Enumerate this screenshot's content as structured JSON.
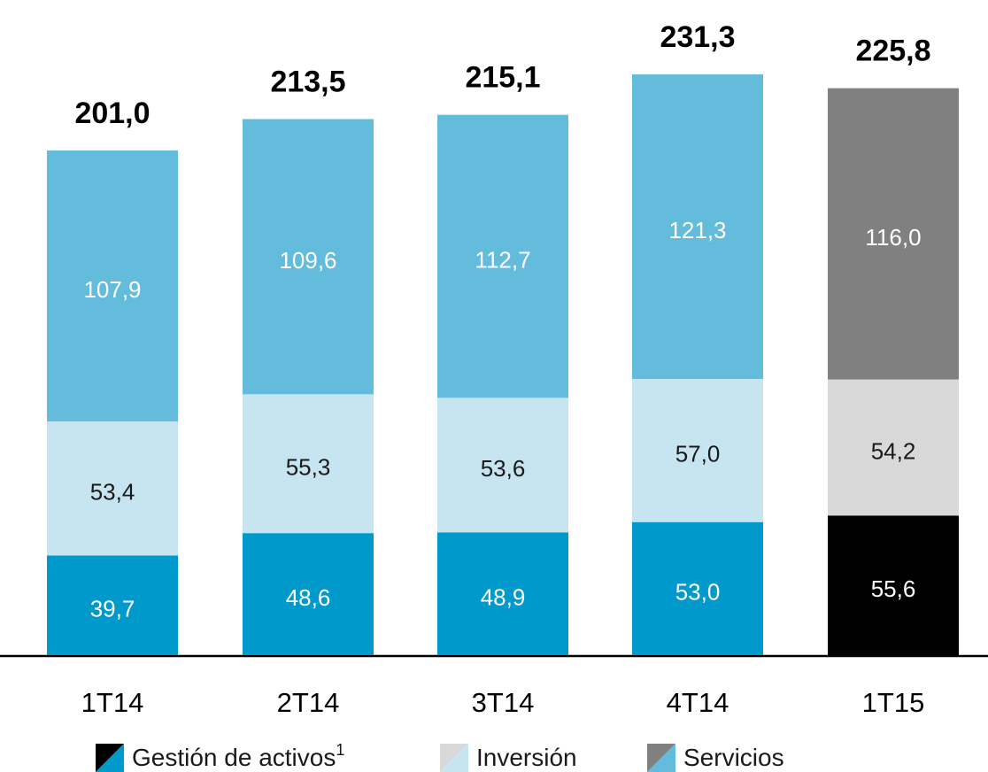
{
  "chart_data": {
    "type": "stacked_bar",
    "categories": [
      "1T14",
      "2T14",
      "3T14",
      "4T14",
      "1T15"
    ],
    "series": [
      {
        "name": "Gestión de activos",
        "name_note": "1",
        "color": "#0099cc",
        "colors": [
          "#0099cc",
          "#0099cc",
          "#0099cc",
          "#0099cc",
          "#000000"
        ],
        "label_color": "#ffffff",
        "values": [
          39.7,
          48.6,
          48.9,
          53.0,
          55.6
        ],
        "value_labels": [
          "39,7",
          "48,6",
          "48,9",
          "53,0",
          "55,6"
        ]
      },
      {
        "name": "Inversión",
        "color": "#c6e5f0",
        "colors": [
          "#c6e5f0",
          "#c6e5f0",
          "#c6e5f0",
          "#c6e5f0",
          "#d9d9d9"
        ],
        "label_color": "#1a1a1a",
        "values": [
          53.4,
          55.3,
          53.6,
          57.0,
          54.2
        ],
        "value_labels": [
          "53,4",
          "55,3",
          "53,6",
          "57,0",
          "54,2"
        ]
      },
      {
        "name": "Servicios",
        "color": "#63bcdc",
        "colors": [
          "#63bcdc",
          "#63bcdc",
          "#63bcdc",
          "#63bcdc",
          "#808080"
        ],
        "label_color": "#ffffff",
        "values": [
          107.9,
          109.6,
          112.7,
          121.3,
          116.0
        ],
        "value_labels": [
          "107,9",
          "109,6",
          "112,7",
          "121,3",
          "116,0"
        ]
      }
    ],
    "totals": [
      201.0,
      213.5,
      215.1,
      231.3,
      225.8
    ],
    "total_labels": [
      "201,0",
      "213,5",
      "215,1",
      "231,3",
      "225,8"
    ]
  }
}
